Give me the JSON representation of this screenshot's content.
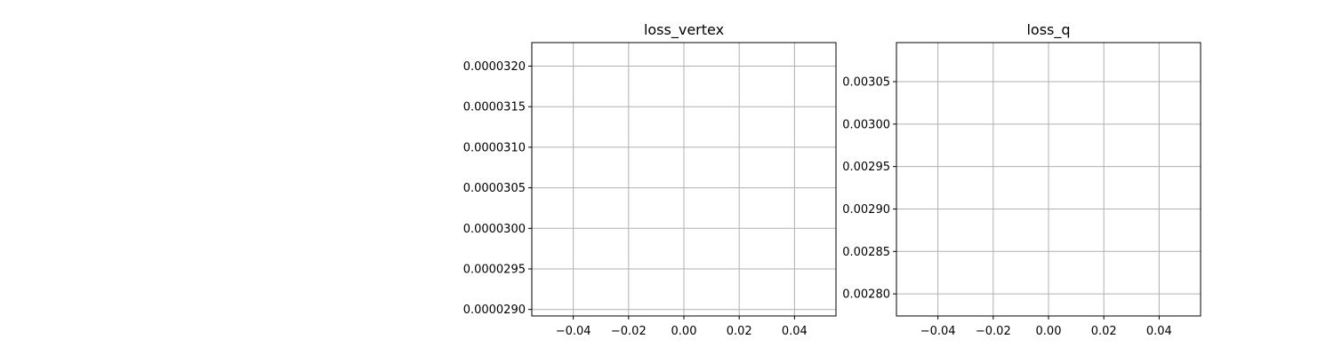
{
  "chart_data": [
    {
      "type": "line",
      "title": "loss_vertex",
      "xlabel": "",
      "ylabel": "",
      "xlim": [
        -0.055,
        0.055
      ],
      "ylim": [
        2.892e-05,
        3.229e-05
      ],
      "xticks": [
        -0.04,
        -0.02,
        0.0,
        0.02,
        0.04
      ],
      "xtick_labels": [
        "−0.04",
        "−0.02",
        "0.00",
        "0.02",
        "0.04"
      ],
      "yticks": [
        2.9e-05,
        2.95e-05,
        3e-05,
        3.05e-05,
        3.1e-05,
        3.15e-05,
        3.2e-05
      ],
      "ytick_labels": [
        "0.0000290",
        "0.0000295",
        "0.0000300",
        "0.0000305",
        "0.0000310",
        "0.0000315",
        "0.0000320"
      ],
      "grid": true,
      "series": []
    },
    {
      "type": "line",
      "title": "loss_q",
      "xlabel": "",
      "ylabel": "",
      "xlim": [
        -0.055,
        0.055
      ],
      "ylim": [
        0.002774,
        0.003096
      ],
      "xticks": [
        -0.04,
        -0.02,
        0.0,
        0.02,
        0.04
      ],
      "xtick_labels": [
        "−0.04",
        "−0.02",
        "0.00",
        "0.02",
        "0.04"
      ],
      "yticks": [
        0.0028,
        0.00285,
        0.0029,
        0.00295,
        0.003,
        0.00305
      ],
      "ytick_labels": [
        "0.00280",
        "0.00285",
        "0.00290",
        "0.00295",
        "0.00300",
        "0.00305"
      ],
      "grid": true,
      "series": []
    }
  ]
}
